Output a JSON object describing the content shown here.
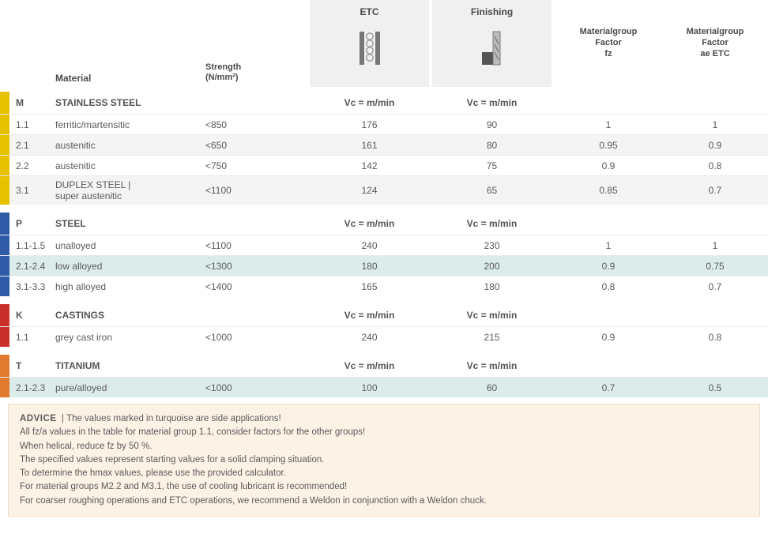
{
  "columns": {
    "material": "Material",
    "strength": "Strength\n(N/mm²)",
    "etc": "ETC",
    "finishing": "Finishing",
    "factor_fz": "Materialgroup\nFactor\nfz",
    "factor_ae": "Materialgroup\nFactor\nae ETC"
  },
  "unit_label": "Vc = m/min",
  "groups": [
    {
      "code": "M",
      "name": "STAINLESS STEEL",
      "stripe_color": "#e5c100",
      "rows": [
        {
          "code": "1.1",
          "material": "ferritic/martensitic",
          "strength": "<850",
          "etc": "176",
          "fin": "90",
          "fz": "1",
          "ae": "1",
          "alt": false
        },
        {
          "code": "2.1",
          "material": "austenitic",
          "strength": "<650",
          "etc": "161",
          "fin": "80",
          "fz": "0.95",
          "ae": "0.9",
          "alt": true
        },
        {
          "code": "2.2",
          "material": "austenitic",
          "strength": "<750",
          "etc": "142",
          "fin": "75",
          "fz": "0.9",
          "ae": "0.8",
          "alt": false
        },
        {
          "code": "3.1",
          "material": "DUPLEX STEEL |\nsuper austenitic",
          "strength": "<1100",
          "etc": "124",
          "fin": "65",
          "fz": "0.85",
          "ae": "0.7",
          "alt": true
        }
      ]
    },
    {
      "code": "P",
      "name": "STEEL",
      "stripe_color": "#2e5aa8",
      "rows": [
        {
          "code": "1.1-1.5",
          "material": "unalloyed",
          "strength": "<1100",
          "etc": "240",
          "fin": "230",
          "fz": "1",
          "ae": "1",
          "alt": false
        },
        {
          "code": "2.1-2.4",
          "material": "low alloyed",
          "strength": "<1300",
          "etc": "180",
          "fin": "200",
          "fz": "0.9",
          "ae": "0.75",
          "alt": true,
          "turquoise": true
        },
        {
          "code": "3.1-3.3",
          "material": "high alloyed",
          "strength": "<1400",
          "etc": "165",
          "fin": "180",
          "fz": "0.8",
          "ae": "0.7",
          "alt": false
        }
      ]
    },
    {
      "code": "K",
      "name": "CASTINGS",
      "stripe_color": "#c9302c",
      "rows": [
        {
          "code": "1.1",
          "material": "grey cast iron",
          "strength": "<1000",
          "etc": "240",
          "fin": "215",
          "fz": "0.9",
          "ae": "0.8",
          "alt": false
        }
      ]
    },
    {
      "code": "T",
      "name": "TITANIUM",
      "stripe_color": "#e07b2e",
      "rows": [
        {
          "code": "2.1-2.3",
          "material": "pure/alloyed",
          "strength": "<1000",
          "etc": "100",
          "fin": "60",
          "fz": "0.7",
          "ae": "0.5",
          "alt": true,
          "turquoise": true
        }
      ]
    }
  ],
  "advice": {
    "title": "ADVICE",
    "lines": [
      "The values marked in turquoise are side applications!",
      "All fz/a values in the table for material group 1.1, consider factors for the other groups!",
      "When helical, reduce fz by 50 %.",
      "The specified values represent starting values for a solid clamping situation.",
      "To determine the hmax values, please use the provided calculator.",
      "For material groups M2.2 and M3.1, the use of cooling lubricant is recommended!",
      "For coarser roughing operations and ETC operations, we recommend a Weldon in conjunction with a Weldon chuck."
    ]
  },
  "style": {
    "background": "#ffffff",
    "text_color": "#5a5a5a",
    "header_bg": "#f0f0f0",
    "alt_row_bg": "#f4f4f4",
    "turquoise_bg": "#dcecea",
    "advice_bg": "#fdf2e6",
    "advice_border": "#f0dcc2",
    "font_size_base": 12,
    "font_size_advice": 11.5
  }
}
